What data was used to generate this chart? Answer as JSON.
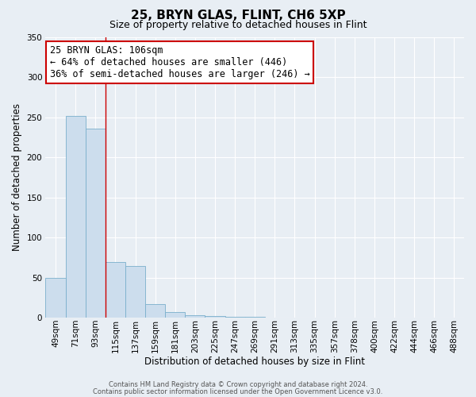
{
  "title": "25, BRYN GLAS, FLINT, CH6 5XP",
  "subtitle": "Size of property relative to detached houses in Flint",
  "xlabel": "Distribution of detached houses by size in Flint",
  "ylabel": "Number of detached properties",
  "bar_labels": [
    "49sqm",
    "71sqm",
    "93sqm",
    "115sqm",
    "137sqm",
    "159sqm",
    "181sqm",
    "203sqm",
    "225sqm",
    "247sqm",
    "269sqm",
    "291sqm",
    "313sqm",
    "335sqm",
    "357sqm",
    "378sqm",
    "400sqm",
    "422sqm",
    "444sqm",
    "466sqm",
    "488sqm"
  ],
  "bar_values": [
    50,
    252,
    236,
    70,
    65,
    17,
    7,
    3,
    2,
    1,
    1,
    0,
    0,
    0,
    0,
    0,
    0,
    0,
    0,
    0,
    0
  ],
  "bar_color": "#ccdded",
  "bar_edge_color": "#7aafcc",
  "bar_width": 1.0,
  "vline_x": 2.5,
  "vline_color": "#cc0000",
  "annotation_title": "25 BRYN GLAS: 106sqm",
  "annotation_line1": "← 64% of detached houses are smaller (446)",
  "annotation_line2": "36% of semi-detached houses are larger (246) →",
  "annotation_box_color": "#cc0000",
  "ylim": [
    0,
    350
  ],
  "yticks": [
    0,
    50,
    100,
    150,
    200,
    250,
    300,
    350
  ],
  "footer1": "Contains HM Land Registry data © Crown copyright and database right 2024.",
  "footer2": "Contains public sector information licensed under the Open Government Licence v3.0.",
  "background_color": "#e8eef4",
  "plot_bg_color": "#e8eef4",
  "grid_color": "#ffffff",
  "title_fontsize": 11,
  "subtitle_fontsize": 9,
  "xlabel_fontsize": 8.5,
  "ylabel_fontsize": 8.5,
  "tick_fontsize": 7.5,
  "annotation_fontsize": 8.5,
  "footer_fontsize": 6
}
